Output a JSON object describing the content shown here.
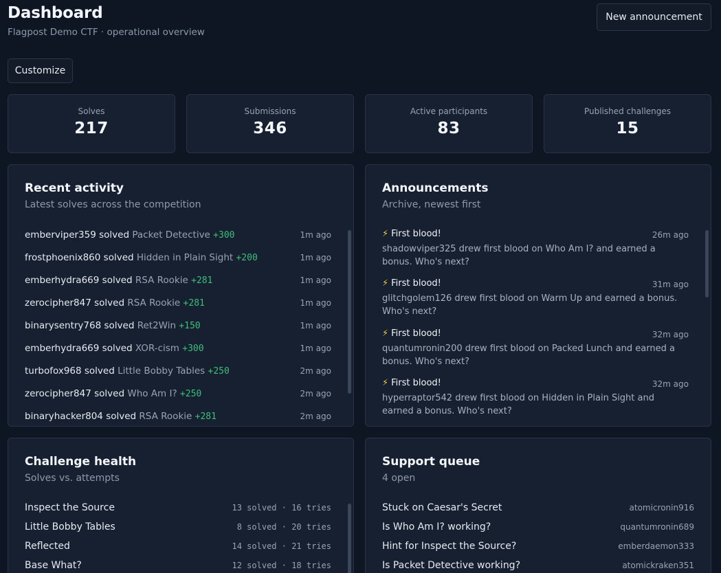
{
  "header": {
    "title": "Dashboard",
    "subtitle": "Flagpost Demo CTF · operational overview",
    "new_announcement_label": "New announcement",
    "customize_label": "Customize"
  },
  "stats": [
    {
      "label": "Solves",
      "value": "217"
    },
    {
      "label": "Submissions",
      "value": "346"
    },
    {
      "label": "Active participants",
      "value": "83"
    },
    {
      "label": "Published challenges",
      "value": "15"
    }
  ],
  "recent_activity": {
    "title": "Recent activity",
    "subtitle": "Latest solves across the competition",
    "items": [
      {
        "user": "emberviper359",
        "verb": "solved",
        "challenge": "Packet Detective",
        "points": "+300",
        "time": "1m ago"
      },
      {
        "user": "frostphoenix860",
        "verb": "solved",
        "challenge": "Hidden in Plain Sight",
        "points": "+200",
        "time": "1m ago"
      },
      {
        "user": "emberhydra669",
        "verb": "solved",
        "challenge": "RSA Rookie",
        "points": "+281",
        "time": "1m ago"
      },
      {
        "user": "zerocipher847",
        "verb": "solved",
        "challenge": "RSA Rookie",
        "points": "+281",
        "time": "1m ago"
      },
      {
        "user": "binarysentry768",
        "verb": "solved",
        "challenge": "Ret2Win",
        "points": "+150",
        "time": "1m ago"
      },
      {
        "user": "emberhydra669",
        "verb": "solved",
        "challenge": "XOR-cism",
        "points": "+300",
        "time": "1m ago"
      },
      {
        "user": "turbofox968",
        "verb": "solved",
        "challenge": "Little Bobby Tables",
        "points": "+250",
        "time": "2m ago"
      },
      {
        "user": "zerocipher847",
        "verb": "solved",
        "challenge": "Who Am I?",
        "points": "+250",
        "time": "2m ago"
      },
      {
        "user": "binaryhacker804",
        "verb": "solved",
        "challenge": "RSA Rookie",
        "points": "+281",
        "time": "2m ago"
      }
    ]
  },
  "announcements": {
    "title": "Announcements",
    "subtitle": "Archive, newest first",
    "items": [
      {
        "icon": "⚡",
        "title": "First blood!",
        "time": "26m ago",
        "body": "shadowviper325 drew first blood on Who Am I? and earned a bonus. Who's next?"
      },
      {
        "icon": "⚡",
        "title": "First blood!",
        "time": "31m ago",
        "body": "glitchgolem126 drew first blood on Warm Up and earned a bonus. Who's next?"
      },
      {
        "icon": "⚡",
        "title": "First blood!",
        "time": "32m ago",
        "body": "quantumronin200 drew first blood on Packed Lunch and earned a bonus. Who's next?"
      },
      {
        "icon": "⚡",
        "title": "First blood!",
        "time": "32m ago",
        "body": "hyperraptor542 drew first blood on Hidden in Plain Sight and earned a bonus. Who's next?"
      }
    ]
  },
  "challenge_health": {
    "title": "Challenge health",
    "subtitle": "Solves vs. attempts",
    "items": [
      {
        "name": "Inspect the Source",
        "stats": "13 solved · 16 tries"
      },
      {
        "name": "Little Bobby Tables",
        "stats": "8 solved · 20 tries"
      },
      {
        "name": "Reflected",
        "stats": "14 solved · 21 tries"
      },
      {
        "name": "Base What?",
        "stats": "12 solved · 18 tries"
      }
    ]
  },
  "support_queue": {
    "title": "Support queue",
    "subtitle": "4 open",
    "items": [
      {
        "subject": "Stuck on Caesar's Secret",
        "user": "atomicronin916"
      },
      {
        "subject": "Is Who Am I? working?",
        "user": "quantumronin689"
      },
      {
        "subject": "Hint for Inspect the Source?",
        "user": "emberdaemon333"
      },
      {
        "subject": "Is Packet Detective working?",
        "user": "atomickraken351"
      }
    ]
  }
}
